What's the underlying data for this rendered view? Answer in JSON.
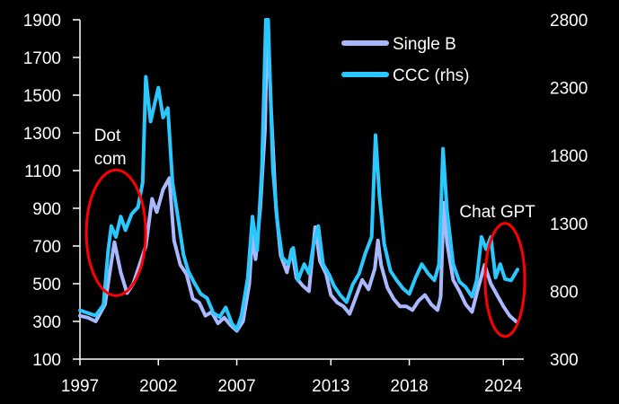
{
  "chart_data": {
    "type": "line",
    "title": "",
    "xlabel": "",
    "ylabel": "",
    "ylabel_right": "",
    "x_ticks": [
      "1997",
      "2002",
      "2007",
      "2013",
      "2018",
      "2024"
    ],
    "y_left_ticks": [
      "1900",
      "1700",
      "1500",
      "1300",
      "1100",
      "900",
      "700",
      "500",
      "300",
      "100"
    ],
    "y_right_ticks": [
      "2800",
      "2300",
      "1800",
      "1300",
      "800",
      "300"
    ],
    "ylim_left": [
      100,
      1900
    ],
    "ylim_right": [
      300,
      2800
    ],
    "xlim": [
      1997,
      2025.3
    ],
    "legend_position": "top-right",
    "grid": false,
    "series": [
      {
        "name": "Single B",
        "axis": "left",
        "color": "#a9b8ff",
        "points": [
          [
            1997.0,
            330
          ],
          [
            1997.5,
            320
          ],
          [
            1998.0,
            300
          ],
          [
            1998.6,
            390
          ],
          [
            1998.9,
            560
          ],
          [
            1999.2,
            720
          ],
          [
            1999.6,
            560
          ],
          [
            2000.0,
            450
          ],
          [
            2000.4,
            500
          ],
          [
            2000.8,
            600
          ],
          [
            2001.2,
            700
          ],
          [
            2001.6,
            950
          ],
          [
            2001.9,
            880
          ],
          [
            2002.3,
            1000
          ],
          [
            2002.7,
            1060
          ],
          [
            2003.0,
            730
          ],
          [
            2003.4,
            600
          ],
          [
            2003.8,
            550
          ],
          [
            2004.2,
            420
          ],
          [
            2004.6,
            400
          ],
          [
            2005.0,
            330
          ],
          [
            2005.4,
            350
          ],
          [
            2005.8,
            290
          ],
          [
            2006.2,
            320
          ],
          [
            2006.6,
            280
          ],
          [
            2007.0,
            250
          ],
          [
            2007.4,
            300
          ],
          [
            2007.8,
            500
          ],
          [
            2008.0,
            760
          ],
          [
            2008.2,
            630
          ],
          [
            2008.5,
            900
          ],
          [
            2008.8,
            1320
          ],
          [
            2008.95,
            1900
          ],
          [
            2009.2,
            1400
          ],
          [
            2009.5,
            900
          ],
          [
            2009.8,
            650
          ],
          [
            2010.2,
            560
          ],
          [
            2010.5,
            680
          ],
          [
            2010.8,
            530
          ],
          [
            2011.2,
            490
          ],
          [
            2011.6,
            460
          ],
          [
            2012.0,
            800
          ],
          [
            2012.3,
            620
          ],
          [
            2012.7,
            550
          ],
          [
            2013.0,
            440
          ],
          [
            2013.4,
            400
          ],
          [
            2013.8,
            380
          ],
          [
            2014.2,
            340
          ],
          [
            2014.6,
            430
          ],
          [
            2015.0,
            520
          ],
          [
            2015.4,
            470
          ],
          [
            2015.8,
            580
          ],
          [
            2016.0,
            730
          ],
          [
            2016.2,
            600
          ],
          [
            2016.6,
            480
          ],
          [
            2017.0,
            420
          ],
          [
            2017.4,
            380
          ],
          [
            2017.8,
            380
          ],
          [
            2018.2,
            360
          ],
          [
            2018.6,
            410
          ],
          [
            2019.0,
            440
          ],
          [
            2019.4,
            390
          ],
          [
            2019.8,
            360
          ],
          [
            2020.0,
            430
          ],
          [
            2020.2,
            930
          ],
          [
            2020.4,
            720
          ],
          [
            2020.8,
            520
          ],
          [
            2021.2,
            460
          ],
          [
            2021.6,
            390
          ],
          [
            2022.0,
            350
          ],
          [
            2022.4,
            480
          ],
          [
            2022.8,
            600
          ],
          [
            2023.2,
            500
          ],
          [
            2023.6,
            440
          ],
          [
            2024.0,
            380
          ],
          [
            2024.4,
            330
          ],
          [
            2024.8,
            300
          ]
        ]
      },
      {
        "name": "CCC (rhs)",
        "axis": "right",
        "color": "#29c8ff",
        "points": [
          [
            1997.0,
            660
          ],
          [
            1997.5,
            640
          ],
          [
            1998.0,
            620
          ],
          [
            1998.5,
            700
          ],
          [
            1998.8,
            1100
          ],
          [
            1999.0,
            1280
          ],
          [
            1999.3,
            1200
          ],
          [
            1999.6,
            1350
          ],
          [
            1999.9,
            1250
          ],
          [
            2000.3,
            1370
          ],
          [
            2000.7,
            1420
          ],
          [
            2001.0,
            1600
          ],
          [
            2001.2,
            2380
          ],
          [
            2001.5,
            2050
          ],
          [
            2001.8,
            2200
          ],
          [
            2002.0,
            2300
          ],
          [
            2002.3,
            2080
          ],
          [
            2002.6,
            2150
          ],
          [
            2002.9,
            1600
          ],
          [
            2003.2,
            1380
          ],
          [
            2003.6,
            1070
          ],
          [
            2003.9,
            950
          ],
          [
            2004.3,
            860
          ],
          [
            2004.7,
            780
          ],
          [
            2005.1,
            750
          ],
          [
            2005.5,
            640
          ],
          [
            2005.9,
            610
          ],
          [
            2006.3,
            680
          ],
          [
            2006.7,
            560
          ],
          [
            2007.0,
            520
          ],
          [
            2007.3,
            620
          ],
          [
            2007.7,
            900
          ],
          [
            2008.0,
            1350
          ],
          [
            2008.3,
            1100
          ],
          [
            2008.6,
            1700
          ],
          [
            2008.85,
            2800
          ],
          [
            2009.0,
            2800
          ],
          [
            2009.3,
            1700
          ],
          [
            2009.6,
            1300
          ],
          [
            2009.9,
            1050
          ],
          [
            2010.3,
            1000
          ],
          [
            2010.6,
            1120
          ],
          [
            2010.9,
            880
          ],
          [
            2011.3,
            1000
          ],
          [
            2011.6,
            930
          ],
          [
            2011.9,
            1150
          ],
          [
            2012.2,
            1280
          ],
          [
            2012.5,
            1000
          ],
          [
            2012.9,
            920
          ],
          [
            2013.2,
            840
          ],
          [
            2013.6,
            770
          ],
          [
            2014.0,
            720
          ],
          [
            2014.4,
            850
          ],
          [
            2014.8,
            930
          ],
          [
            2015.2,
            1080
          ],
          [
            2015.6,
            1200
          ],
          [
            2015.85,
            1950
          ],
          [
            2016.1,
            1500
          ],
          [
            2016.4,
            1150
          ],
          [
            2016.8,
            950
          ],
          [
            2017.2,
            880
          ],
          [
            2017.6,
            820
          ],
          [
            2018.0,
            780
          ],
          [
            2018.4,
            900
          ],
          [
            2018.8,
            1000
          ],
          [
            2019.2,
            930
          ],
          [
            2019.6,
            880
          ],
          [
            2019.9,
            1000
          ],
          [
            2020.15,
            1850
          ],
          [
            2020.4,
            1400
          ],
          [
            2020.8,
            1000
          ],
          [
            2021.2,
            870
          ],
          [
            2021.6,
            830
          ],
          [
            2022.0,
            760
          ],
          [
            2022.3,
            880
          ],
          [
            2022.6,
            1200
          ],
          [
            2022.9,
            1110
          ],
          [
            2023.2,
            1200
          ],
          [
            2023.5,
            900
          ],
          [
            2023.8,
            1000
          ],
          [
            2024.1,
            890
          ],
          [
            2024.5,
            880
          ],
          [
            2024.9,
            960
          ]
        ]
      }
    ],
    "annotations": [
      {
        "lines": [
          "Dot",
          "com"
        ],
        "x": 1999.3,
        "y_left": 800
      },
      {
        "lines": [
          "Chat GPT"
        ],
        "x": 2024.1,
        "y_left": 550
      }
    ],
    "highlight_color": "#ff0000"
  }
}
